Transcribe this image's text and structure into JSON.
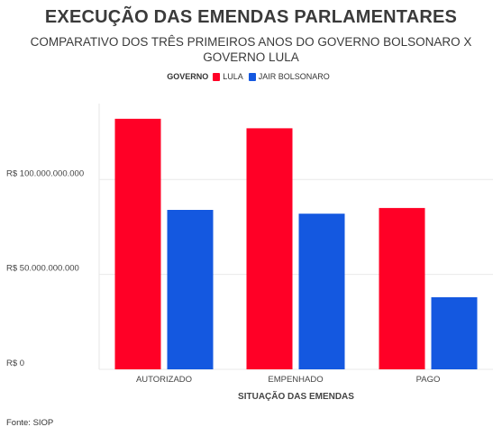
{
  "chart_data": {
    "type": "bar",
    "title": "EXECUÇÃO DAS EMENDAS PARLAMENTARES",
    "subtitle": "COMPARATIVO DOS TRÊS PRIMEIROS ANOS DO GOVERNO BOLSONARO X GOVERNO LULA",
    "legend_title": "GOVERNO",
    "legend_position": "top-center",
    "xlabel": "SITUAÇÃO DAS EMENDAS",
    "ylabel": "",
    "categories": [
      "AUTORIZADO",
      "EMPENHADO",
      "PAGO"
    ],
    "series": [
      {
        "name": "LULA",
        "color": "#ff0026",
        "values": [
          132000000000,
          127000000000,
          85000000000
        ]
      },
      {
        "name": "JAIR BOLSONARO",
        "color": "#1458e0",
        "values": [
          84000000000,
          82000000000,
          38000000000
        ]
      }
    ],
    "y_ticks": [
      {
        "value": 0,
        "label": "R$ 0"
      },
      {
        "value": 50000000000,
        "label": "R$ 50.000.000.000"
      },
      {
        "value": 100000000000,
        "label": "R$ 100.000.000.000"
      }
    ],
    "ylim": [
      0,
      140000000000
    ],
    "grid": true
  },
  "footer": {
    "source": "Fonte: SIOP"
  }
}
